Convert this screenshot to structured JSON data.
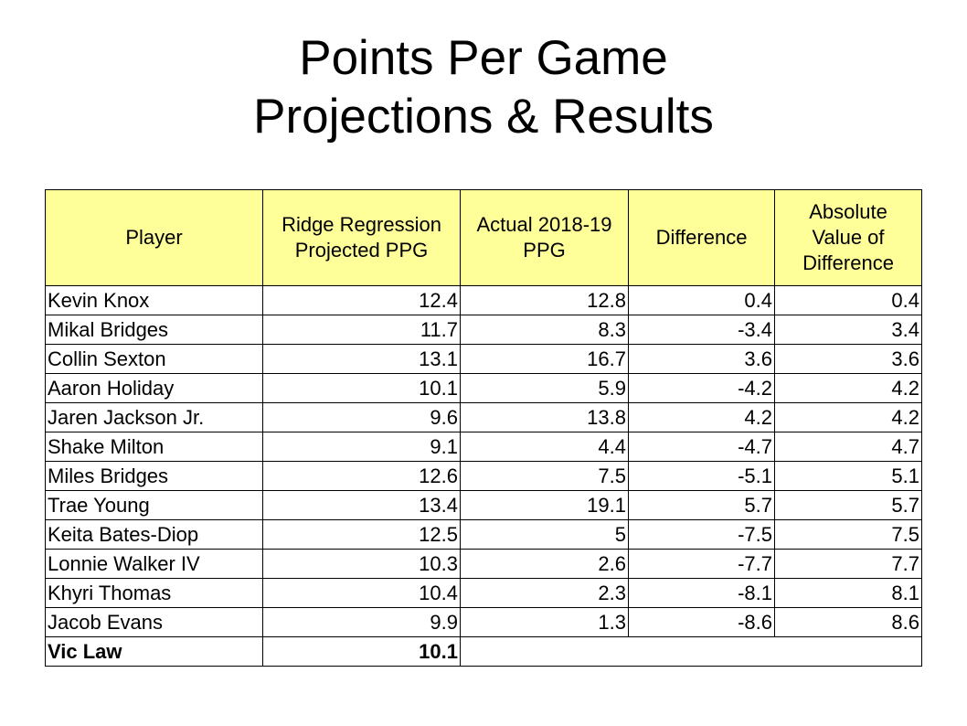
{
  "title": {
    "line1": "Points Per Game",
    "line2": "Projections & Results"
  },
  "table": {
    "headers": {
      "player": "Player",
      "projected_line1": "Ridge Regression",
      "projected_line2": "Projected PPG",
      "actual_line1": "Actual 2018-19",
      "actual_line2": "PPG",
      "difference": "Difference",
      "abs_line1": "Absolute",
      "abs_line2": "Value of",
      "abs_line3": "Difference"
    },
    "header_bg": "#ffff99",
    "rows": [
      {
        "player": "Kevin Knox",
        "projected": "12.4",
        "actual": "12.8",
        "difference": "0.4",
        "abs_difference": "0.4"
      },
      {
        "player": "Mikal Bridges",
        "projected": "11.7",
        "actual": "8.3",
        "difference": "-3.4",
        "abs_difference": "3.4"
      },
      {
        "player": "Collin Sexton",
        "projected": "13.1",
        "actual": "16.7",
        "difference": "3.6",
        "abs_difference": "3.6"
      },
      {
        "player": "Aaron Holiday",
        "projected": "10.1",
        "actual": "5.9",
        "difference": "-4.2",
        "abs_difference": "4.2"
      },
      {
        "player": "Jaren Jackson Jr.",
        "projected": "9.6",
        "actual": "13.8",
        "difference": "4.2",
        "abs_difference": "4.2"
      },
      {
        "player": "Shake Milton",
        "projected": "9.1",
        "actual": "4.4",
        "difference": "-4.7",
        "abs_difference": "4.7"
      },
      {
        "player": "Miles Bridges",
        "projected": "12.6",
        "actual": "7.5",
        "difference": "-5.1",
        "abs_difference": "5.1"
      },
      {
        "player": "Trae Young",
        "projected": "13.4",
        "actual": "19.1",
        "difference": "5.7",
        "abs_difference": "5.7"
      },
      {
        "player": "Keita Bates-Diop",
        "projected": "12.5",
        "actual": "5",
        "difference": "-7.5",
        "abs_difference": "7.5"
      },
      {
        "player": "Lonnie Walker IV",
        "projected": "10.3",
        "actual": "2.6",
        "difference": "-7.7",
        "abs_difference": "7.7"
      },
      {
        "player": "Khyri Thomas",
        "projected": "10.4",
        "actual": "2.3",
        "difference": "-8.1",
        "abs_difference": "8.1"
      },
      {
        "player": "Jacob Evans",
        "projected": "9.9",
        "actual": "1.3",
        "difference": "-8.6",
        "abs_difference": "8.6"
      }
    ],
    "final_row": {
      "player": "Vic Law",
      "projected": "10.1"
    }
  }
}
